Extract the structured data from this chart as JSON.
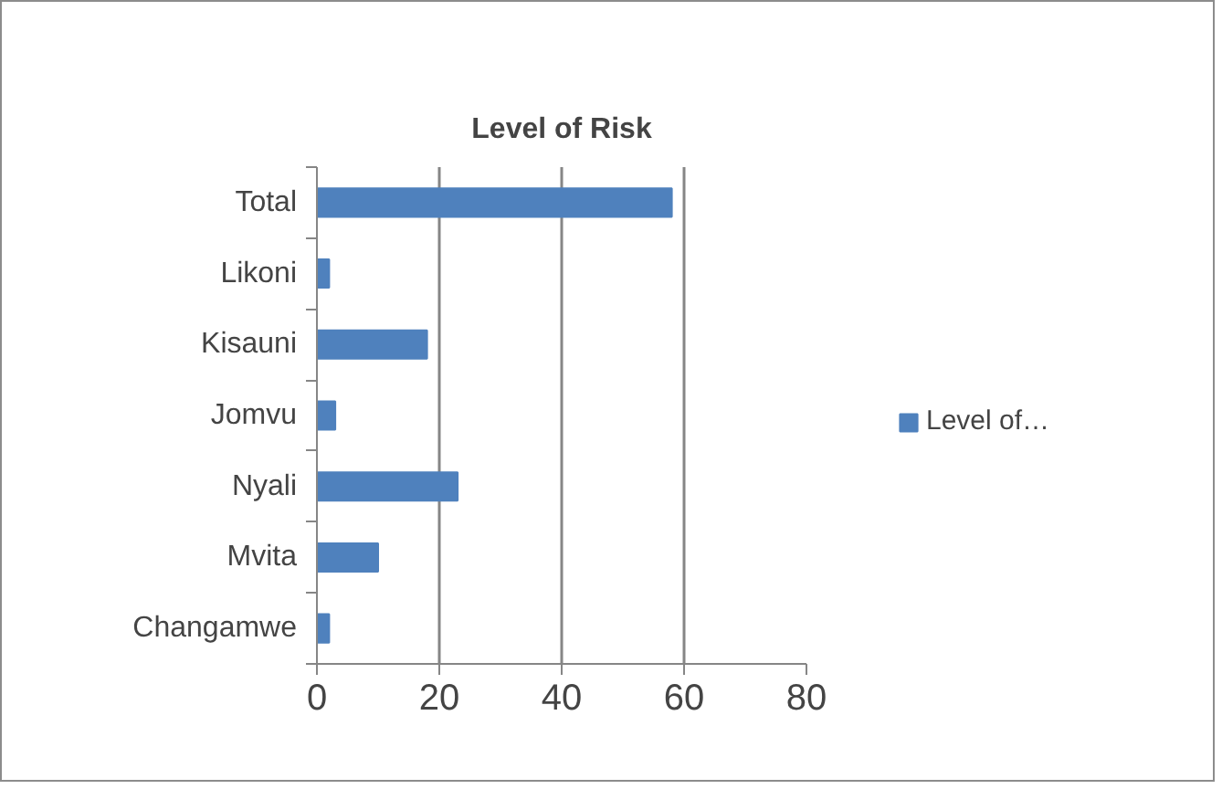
{
  "chart_data": {
    "type": "bar",
    "title": "Level of Risk",
    "orientation": "horizontal",
    "categories": [
      "Total",
      "Likoni",
      "Kisauni",
      "Jomvu",
      "Nyali",
      "Mvita",
      "Changamwe"
    ],
    "series": [
      {
        "name": "Level of…",
        "color": "#4f81bd",
        "values": [
          58,
          2,
          18,
          3,
          23,
          10,
          2
        ]
      }
    ],
    "xlim": [
      0,
      80
    ],
    "xticks": [
      0,
      20,
      40,
      60,
      80
    ],
    "grid": "x",
    "legend": "right"
  }
}
